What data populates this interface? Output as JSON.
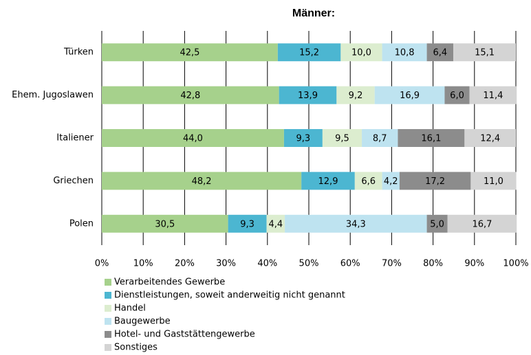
{
  "chart_data": {
    "type": "stacked_barh",
    "title": "Männer:",
    "categories": [
      "Türken",
      "Ehem. Jugoslawen",
      "Italiener",
      "Griechen",
      "Polen"
    ],
    "series": [
      {
        "name": "Verarbeitendes Gewerbe",
        "color": "#a6d18c",
        "values": [
          42.5,
          42.8,
          44.0,
          48.2,
          30.5
        ],
        "value_labels": [
          "42,5",
          "42,8",
          "44,0",
          "48,2",
          "30,5"
        ]
      },
      {
        "name": "Dienstleistungen, soweit anderweitig nicht genannt",
        "color": "#4cb6d1",
        "values": [
          15.2,
          13.9,
          9.3,
          12.9,
          9.3
        ],
        "value_labels": [
          "15,2",
          "13,9",
          "9,3",
          "12,9",
          "9,3"
        ]
      },
      {
        "name": "Handel",
        "color": "#dcedcf",
        "values": [
          10.0,
          9.2,
          9.5,
          6.6,
          4.4
        ],
        "value_labels": [
          "10,0",
          "9,2",
          "9,5",
          "6,6",
          "4,4"
        ]
      },
      {
        "name": "Baugewerbe",
        "color": "#bee3f0",
        "values": [
          10.8,
          16.9,
          8.7,
          4.2,
          34.3
        ],
        "value_labels": [
          "10,8",
          "16,9",
          "8,7",
          "4,2",
          "34,3"
        ]
      },
      {
        "name": "Hotel- und Gaststättengewerbe",
        "color": "#8c8c8c",
        "values": [
          6.4,
          6.0,
          16.1,
          17.2,
          5.0
        ],
        "value_labels": [
          "6,4",
          "6,0",
          "16,1",
          "17,2",
          "5,0"
        ]
      },
      {
        "name": "Sonstiges",
        "color": "#d4d4d4",
        "values": [
          15.1,
          11.4,
          12.4,
          11.0,
          16.7
        ],
        "value_labels": [
          "15,1",
          "11,4",
          "12,4",
          "11,0",
          "16,7"
        ]
      }
    ],
    "xlim": [
      0,
      100
    ],
    "xticks": [
      {
        "value": 0,
        "label": "0%"
      },
      {
        "value": 10,
        "label": "10%"
      },
      {
        "value": 20,
        "label": "20%"
      },
      {
        "value": 30,
        "label": "30%"
      },
      {
        "value": 40,
        "label": "40%"
      },
      {
        "value": 50,
        "label": "50%"
      },
      {
        "value": 60,
        "label": "60%"
      },
      {
        "value": 70,
        "label": "70%"
      },
      {
        "value": 80,
        "label": "80%"
      },
      {
        "value": 90,
        "label": "90%"
      },
      {
        "value": 100,
        "label": "100%"
      }
    ],
    "grid": true
  }
}
